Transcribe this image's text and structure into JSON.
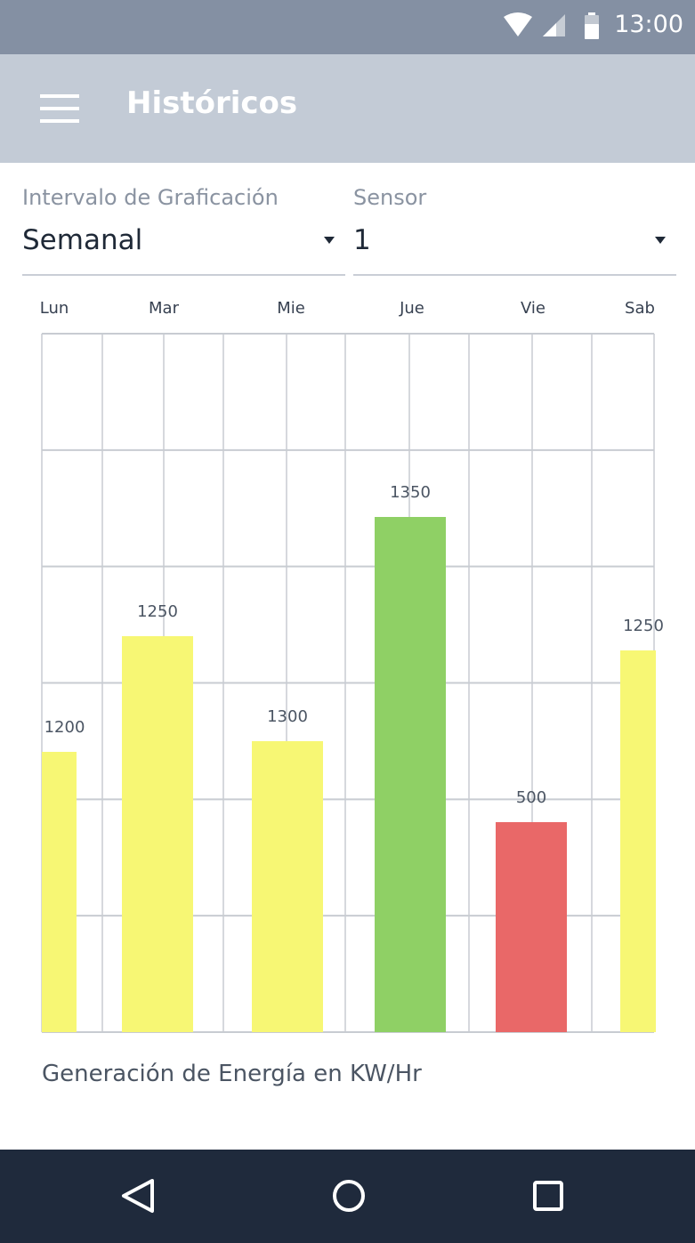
{
  "status_bar": {
    "time": "13:00",
    "icons": [
      "wifi-icon",
      "signal-icon",
      "battery-icon"
    ]
  },
  "app_bar": {
    "title": "Históricos",
    "menu_icon": "menu-icon"
  },
  "filters": {
    "interval": {
      "label": "Intervalo de Graficación",
      "value": "Semanal"
    },
    "sensor": {
      "label": "Sensor",
      "value": "1"
    }
  },
  "chart_data": {
    "type": "bar",
    "categories": [
      "Lun",
      "Mar",
      "Mie",
      "Jue",
      "Vie",
      "Sab"
    ],
    "values": [
      1200,
      1250,
      1300,
      1350,
      500,
      1250
    ],
    "value_labels": [
      "1200",
      "1250",
      "1300",
      "1350",
      "500",
      "1250"
    ],
    "colors": [
      "#f7f774",
      "#f7f774",
      "#f7f774",
      "#8fd065",
      "#e96868",
      "#f7f774"
    ],
    "grid": true,
    "xlabel": "Generación de Energía en KW/Hr"
  },
  "colors": {
    "status_bar": "#8490a3",
    "app_bar": "#c3cbd6",
    "nav_bar": "#1f2a3c",
    "bar_yellow": "#f7f774",
    "bar_green": "#8fd065",
    "bar_red": "#e96868"
  },
  "nav_bar": {
    "icons": [
      "back-icon",
      "home-icon",
      "recents-icon"
    ]
  }
}
